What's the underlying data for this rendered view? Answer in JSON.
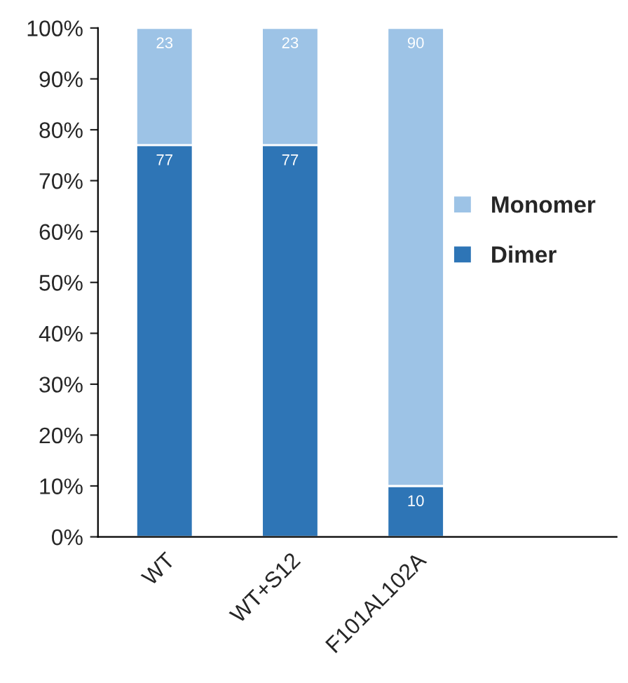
{
  "chart_data": {
    "type": "bar",
    "stacked": true,
    "categories": [
      "WT",
      "WT+S12",
      "F101AL102A"
    ],
    "series": [
      {
        "name": "Dimer",
        "color": "#2e75b6",
        "values": [
          77,
          77,
          10
        ]
      },
      {
        "name": "Monomer",
        "color": "#9dc3e6",
        "values": [
          23,
          23,
          90
        ]
      }
    ],
    "ylim": [
      0,
      100
    ],
    "yticks": [
      {
        "value": 0,
        "label": "0%"
      },
      {
        "value": 10,
        "label": "10%"
      },
      {
        "value": 20,
        "label": "20%"
      },
      {
        "value": 30,
        "label": "30%"
      },
      {
        "value": 40,
        "label": "40%"
      },
      {
        "value": 50,
        "label": "50%"
      },
      {
        "value": 60,
        "label": "60%"
      },
      {
        "value": 70,
        "label": "70%"
      },
      {
        "value": 80,
        "label": "80%"
      },
      {
        "value": 90,
        "label": "90%"
      },
      {
        "value": 100,
        "label": "100%"
      }
    ],
    "data_labels": true,
    "legend": "right",
    "grid": false
  }
}
